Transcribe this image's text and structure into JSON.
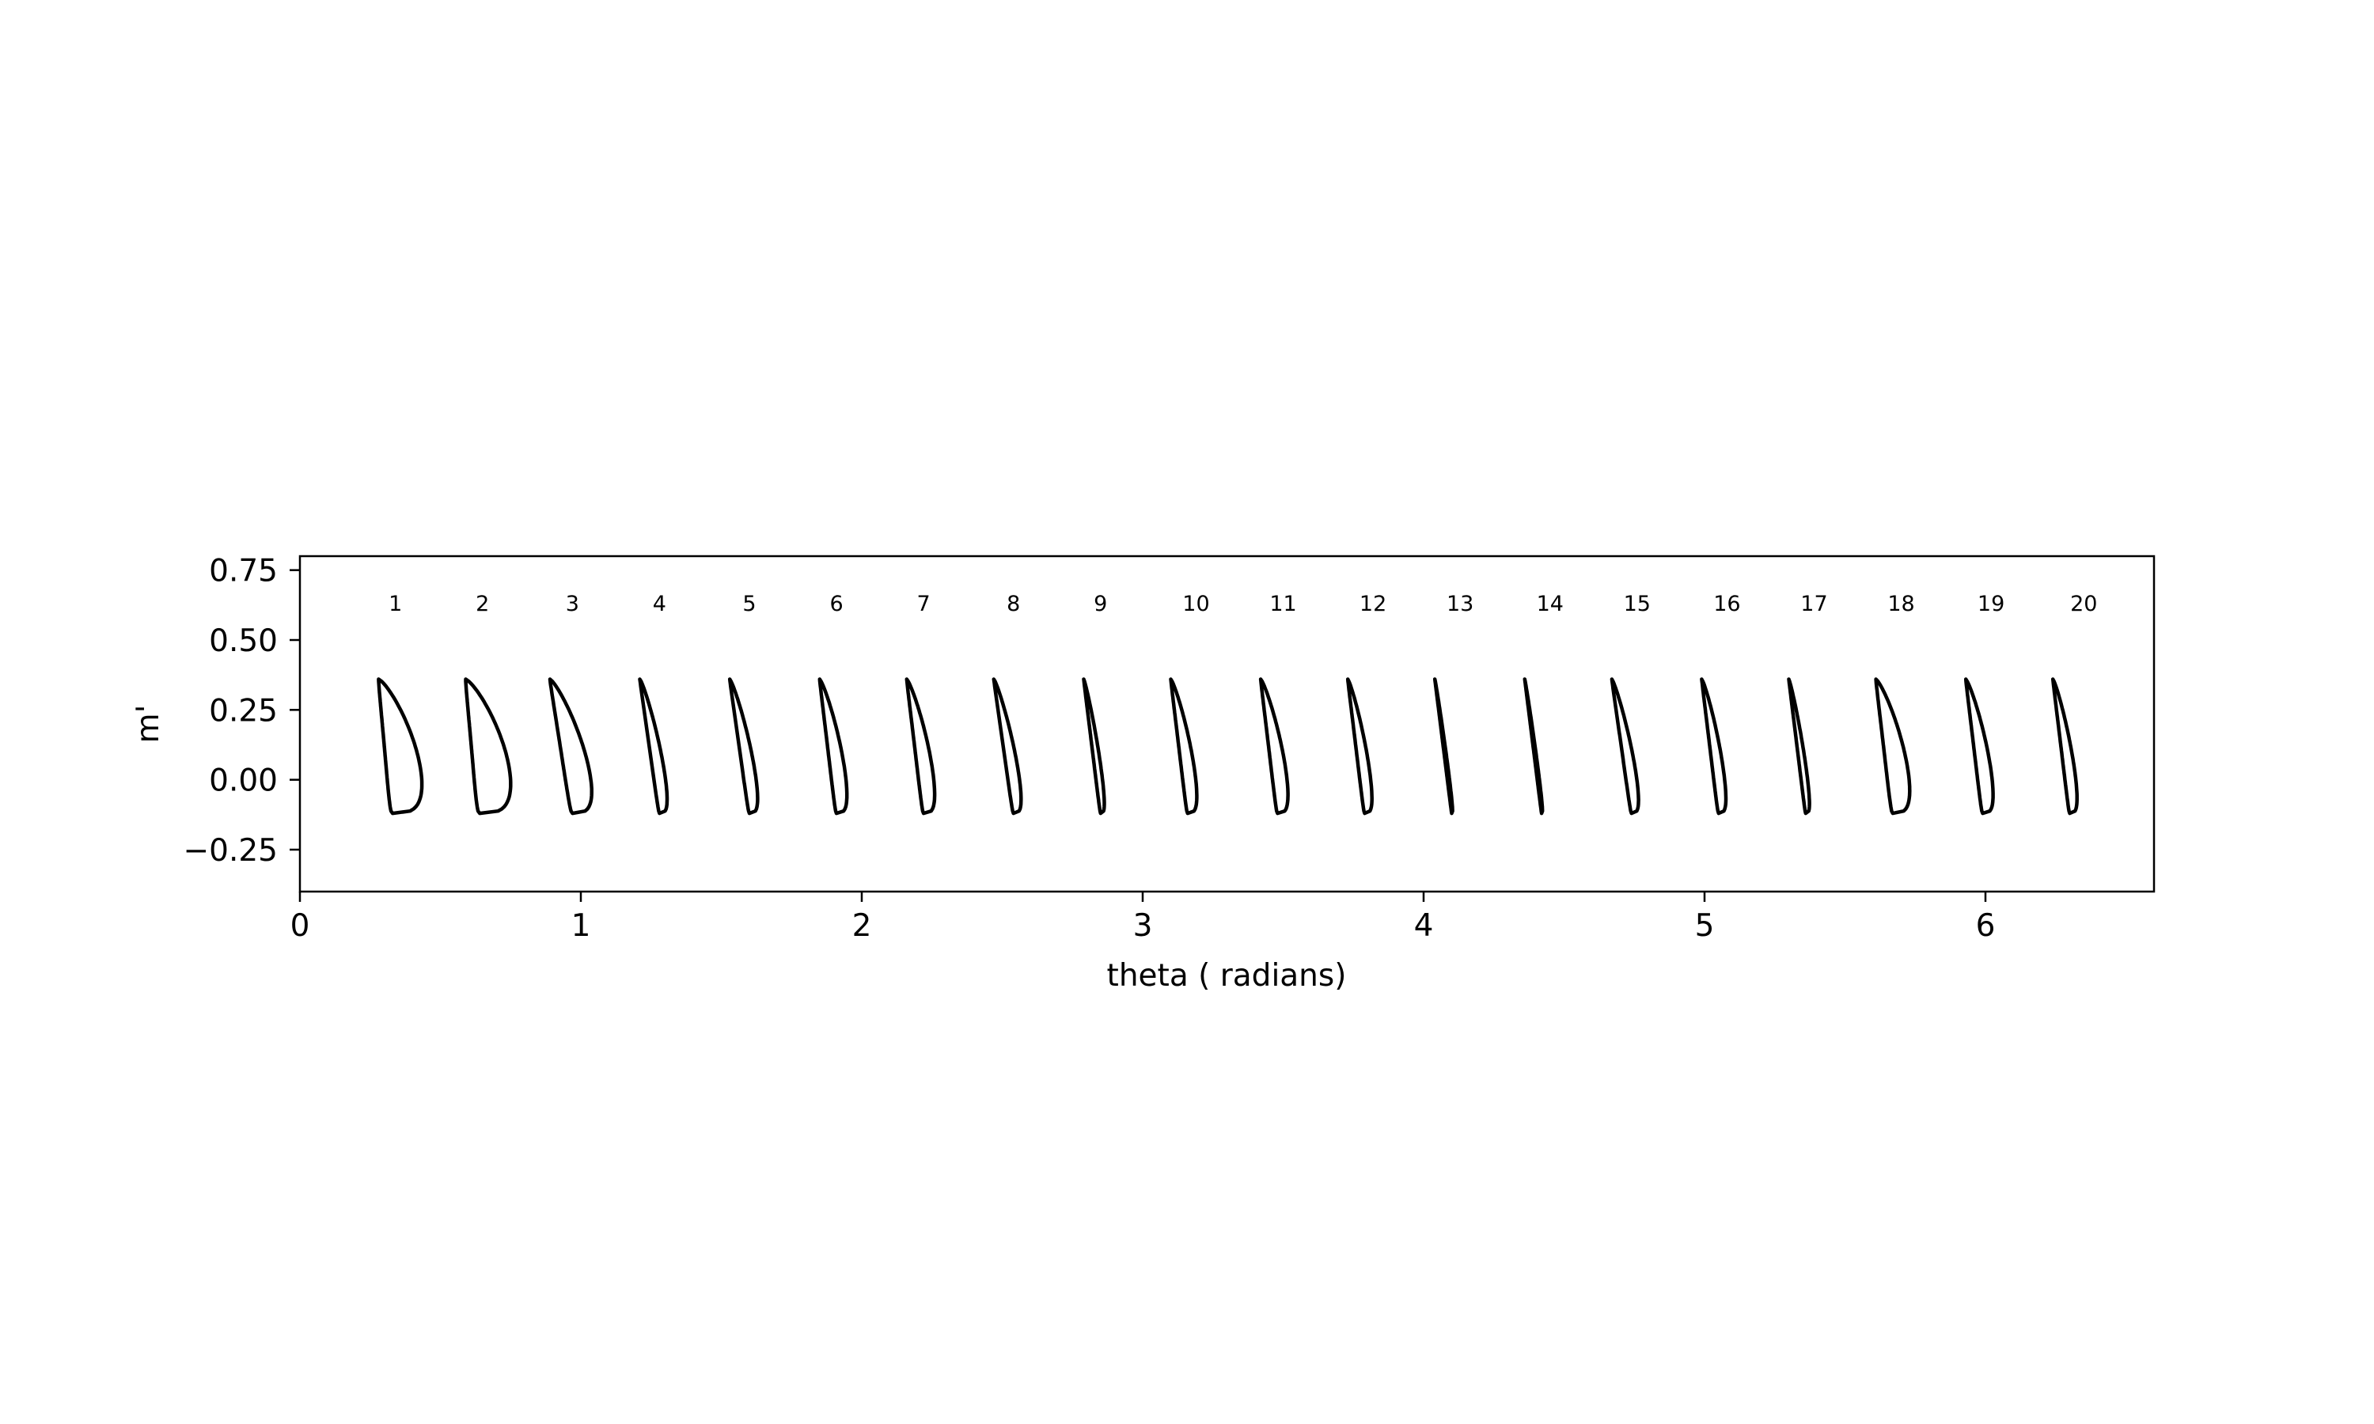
{
  "chart_data": {
    "type": "line",
    "title": "",
    "xlabel": "theta ( radians)",
    "ylabel": "m'",
    "xlim": [
      0,
      6.6
    ],
    "ylim": [
      -0.4,
      0.8
    ],
    "xticks": [
      "0",
      "1",
      "2",
      "3",
      "4",
      "5",
      "6"
    ],
    "yticks": [
      "0.75",
      "0.50",
      "0.25",
      "0.00",
      "−0.25"
    ],
    "grid": false,
    "legend": "none",
    "line_color": "#000000",
    "blade_labels": {
      "y": 0.63,
      "x": [
        0.34,
        0.65,
        0.97,
        1.28,
        1.6,
        1.91,
        2.22,
        2.54,
        2.85,
        3.19,
        3.5,
        3.82,
        4.13,
        4.45,
        4.76,
        5.08,
        5.39,
        5.7,
        6.02,
        6.35
      ],
      "text": [
        "1",
        "2",
        "3",
        "4",
        "5",
        "6",
        "7",
        "8",
        "9",
        "10",
        "11",
        "12",
        "13",
        "14",
        "15",
        "16",
        "17",
        "18",
        "19",
        "20"
      ]
    },
    "leading_edge_m": 0.36,
    "trailing_edge_m": -0.12,
    "blades": [
      {
        "id": "1",
        "leading_theta": 0.28,
        "trailing_theta": 0.33,
        "thickness": 0.095
      },
      {
        "id": "2",
        "leading_theta": 0.59,
        "trailing_theta": 0.64,
        "thickness": 0.1
      },
      {
        "id": "3",
        "leading_theta": 0.89,
        "trailing_theta": 0.97,
        "thickness": 0.07
      },
      {
        "id": "4",
        "leading_theta": 1.21,
        "trailing_theta": 1.28,
        "thickness": 0.032
      },
      {
        "id": "5",
        "leading_theta": 1.53,
        "trailing_theta": 1.6,
        "thickness": 0.034
      },
      {
        "id": "6",
        "leading_theta": 1.85,
        "trailing_theta": 1.91,
        "thickness": 0.04
      },
      {
        "id": "7",
        "leading_theta": 2.16,
        "trailing_theta": 2.22,
        "thickness": 0.042
      },
      {
        "id": "8",
        "leading_theta": 2.47,
        "trailing_theta": 2.54,
        "thickness": 0.032
      },
      {
        "id": "9",
        "leading_theta": 2.79,
        "trailing_theta": 2.85,
        "thickness": 0.018
      },
      {
        "id": "10",
        "leading_theta": 3.1,
        "trailing_theta": 3.16,
        "thickness": 0.036
      },
      {
        "id": "11",
        "leading_theta": 3.42,
        "trailing_theta": 3.48,
        "thickness": 0.04
      },
      {
        "id": "12",
        "leading_theta": 3.73,
        "trailing_theta": 3.79,
        "thickness": 0.03
      },
      {
        "id": "13",
        "leading_theta": 4.04,
        "trailing_theta": 4.1,
        "thickness": 0.006
      },
      {
        "id": "14",
        "leading_theta": 4.36,
        "trailing_theta": 4.42,
        "thickness": 0.006
      },
      {
        "id": "15",
        "leading_theta": 4.67,
        "trailing_theta": 4.74,
        "thickness": 0.03
      },
      {
        "id": "16",
        "leading_theta": 4.99,
        "trailing_theta": 5.05,
        "thickness": 0.03
      },
      {
        "id": "17",
        "leading_theta": 5.3,
        "trailing_theta": 5.36,
        "thickness": 0.018
      },
      {
        "id": "18",
        "leading_theta": 5.61,
        "trailing_theta": 5.67,
        "thickness": 0.06
      },
      {
        "id": "19",
        "leading_theta": 5.93,
        "trailing_theta": 5.99,
        "thickness": 0.04
      },
      {
        "id": "20",
        "leading_theta": 6.24,
        "trailing_theta": 6.3,
        "thickness": 0.03
      }
    ]
  }
}
